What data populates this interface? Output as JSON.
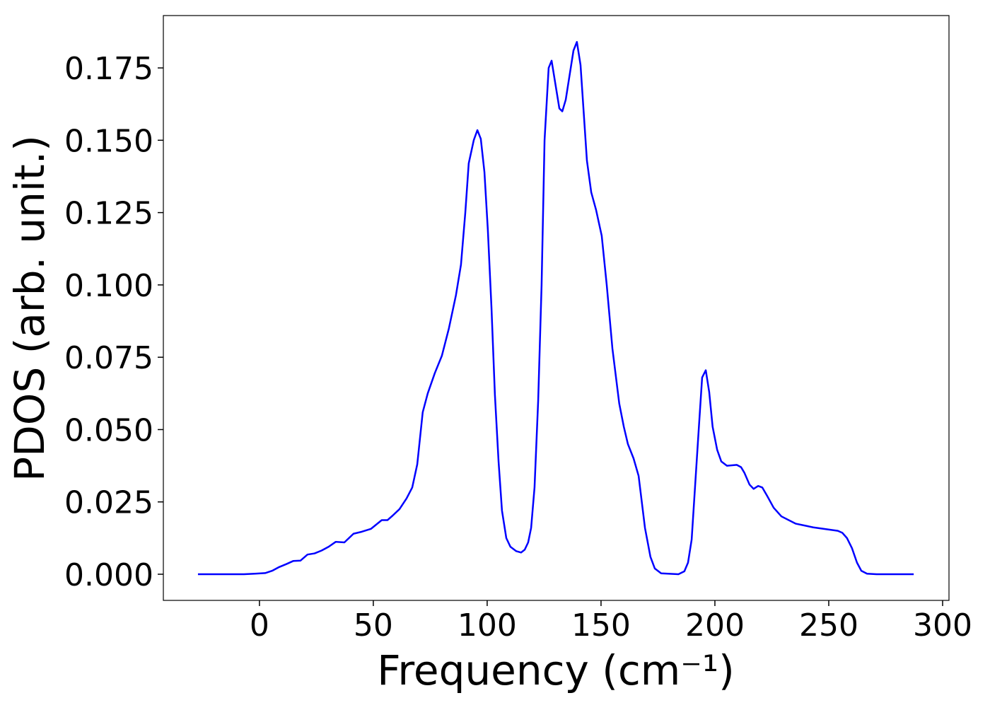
{
  "chart_data": {
    "type": "line",
    "xlabel": "Frequency (cm⁻¹)",
    "ylabel": "PDOS (arb. unit.)",
    "xlim": [
      -42.2,
      302.8
    ],
    "ylim": [
      -0.00904,
      0.1931
    ],
    "xticks": [
      0,
      50,
      100,
      150,
      200,
      250,
      300
    ],
    "yticks": [
      {
        "value": 0,
        "label": "0.000"
      },
      {
        "value": 0.025,
        "label": "0.025"
      },
      {
        "value": 0.05,
        "label": "0.050"
      },
      {
        "value": 0.075,
        "label": "0.075"
      },
      {
        "value": 0.1,
        "label": "0.100"
      },
      {
        "value": 0.125,
        "label": "0.125"
      },
      {
        "value": 0.15,
        "label": "0.150"
      },
      {
        "value": 0.175,
        "label": "0.175"
      }
    ],
    "x": [
      -27,
      -6.8,
      -2,
      2.5,
      5.6,
      8.7,
      11.8,
      14.9,
      18,
      21.1,
      24.2,
      27.3,
      30.4,
      33.5,
      37.3,
      41.3,
      45,
      49,
      53.7,
      56.2,
      58.4,
      61.5,
      64.6,
      67.1,
      69.3,
      71.7,
      73.9,
      77,
      80.1,
      83.2,
      86.3,
      88.5,
      90.4,
      91.9,
      94.1,
      95.7,
      97.2,
      98.8,
      100.3,
      101.9,
      103.4,
      105,
      106.5,
      108.4,
      110.2,
      112.7,
      114.9,
      116.5,
      118,
      119.3,
      120.8,
      122.4,
      123.9,
      125.2,
      127,
      128.3,
      131.7,
      133,
      134.5,
      137.9,
      139.4,
      141,
      143.8,
      145.7,
      147.8,
      150.3,
      152.5,
      155,
      158,
      160,
      161.8,
      164.3,
      166.5,
      169.3,
      171.7,
      173.6,
      176.4,
      184,
      186.6,
      188.2,
      189.8,
      192.9,
      194.4,
      196,
      197.5,
      199,
      201,
      202.8,
      205.3,
      209.6,
      211.5,
      213,
      215.2,
      217,
      219,
      220.8,
      223,
      225.8,
      229.2,
      235.4,
      243.2,
      254,
      256,
      258,
      260.2,
      262.4,
      264.3,
      266.8,
      271,
      287.3
    ],
    "series": [
      {
        "color": "#0000ff",
        "values": [
          0,
          0,
          0.0002,
          0.0004,
          0.0012,
          0.0025,
          0.0035,
          0.0046,
          0.0047,
          0.0068,
          0.0072,
          0.0082,
          0.0095,
          0.0112,
          0.011,
          0.014,
          0.0147,
          0.0157,
          0.0187,
          0.0187,
          0.0202,
          0.0225,
          0.0262,
          0.03,
          0.038,
          0.056,
          0.0625,
          0.0695,
          0.0755,
          0.085,
          0.0965,
          0.107,
          0.125,
          0.142,
          0.15,
          0.1535,
          0.1505,
          0.139,
          0.119,
          0.092,
          0.062,
          0.039,
          0.022,
          0.0125,
          0.0095,
          0.008,
          0.0075,
          0.0085,
          0.011,
          0.016,
          0.03,
          0.06,
          0.1,
          0.15,
          0.175,
          0.1775,
          0.161,
          0.16,
          0.164,
          0.181,
          0.184,
          0.176,
          0.143,
          0.132,
          0.126,
          0.117,
          0.1,
          0.078,
          0.059,
          0.051,
          0.045,
          0.04,
          0.034,
          0.016,
          0.006,
          0.002,
          0.0003,
          0,
          0.001,
          0.004,
          0.012,
          0.05,
          0.068,
          0.0705,
          0.063,
          0.051,
          0.043,
          0.039,
          0.0375,
          0.0378,
          0.037,
          0.035,
          0.031,
          0.0295,
          0.0305,
          0.03,
          0.027,
          0.023,
          0.02,
          0.0175,
          0.0162,
          0.015,
          0.0143,
          0.0125,
          0.009,
          0.004,
          0.0012,
          0.0002,
          0,
          0
        ]
      }
    ]
  }
}
